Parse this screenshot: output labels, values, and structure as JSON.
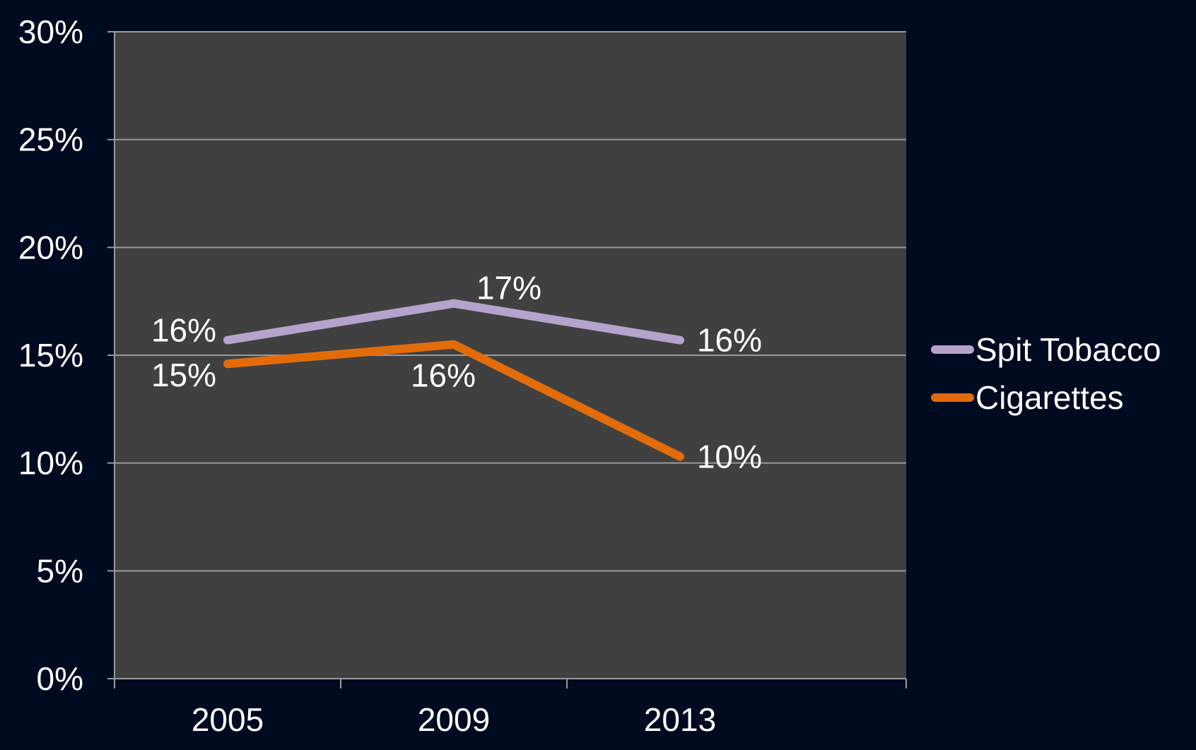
{
  "chart_data": {
    "type": "line",
    "categories": [
      "2005",
      "2009",
      "2013"
    ],
    "ylim": [
      0,
      30
    ],
    "yticks": [
      0,
      5,
      10,
      15,
      20,
      25,
      30
    ],
    "ytick_labels": [
      "0%",
      "5%",
      "10%",
      "15%",
      "20%",
      "25%",
      "30%"
    ],
    "grid": true,
    "legend": "right",
    "series": [
      {
        "name": "Spit Tobacco",
        "color": "#b6a3cc",
        "values": [
          15.7,
          17.4,
          15.7
        ],
        "labels": [
          "16%",
          "17%",
          "16%"
        ]
      },
      {
        "name": "Cigarettes",
        "color": "#e36c0a",
        "values": [
          14.6,
          15.5,
          10.3
        ],
        "labels": [
          "15%",
          "16%",
          "10%"
        ]
      }
    ],
    "colors": {
      "background": "#000a20",
      "plot_area": "#404040",
      "gridline": "#9a9a9a",
      "text": "#ffffff"
    }
  }
}
